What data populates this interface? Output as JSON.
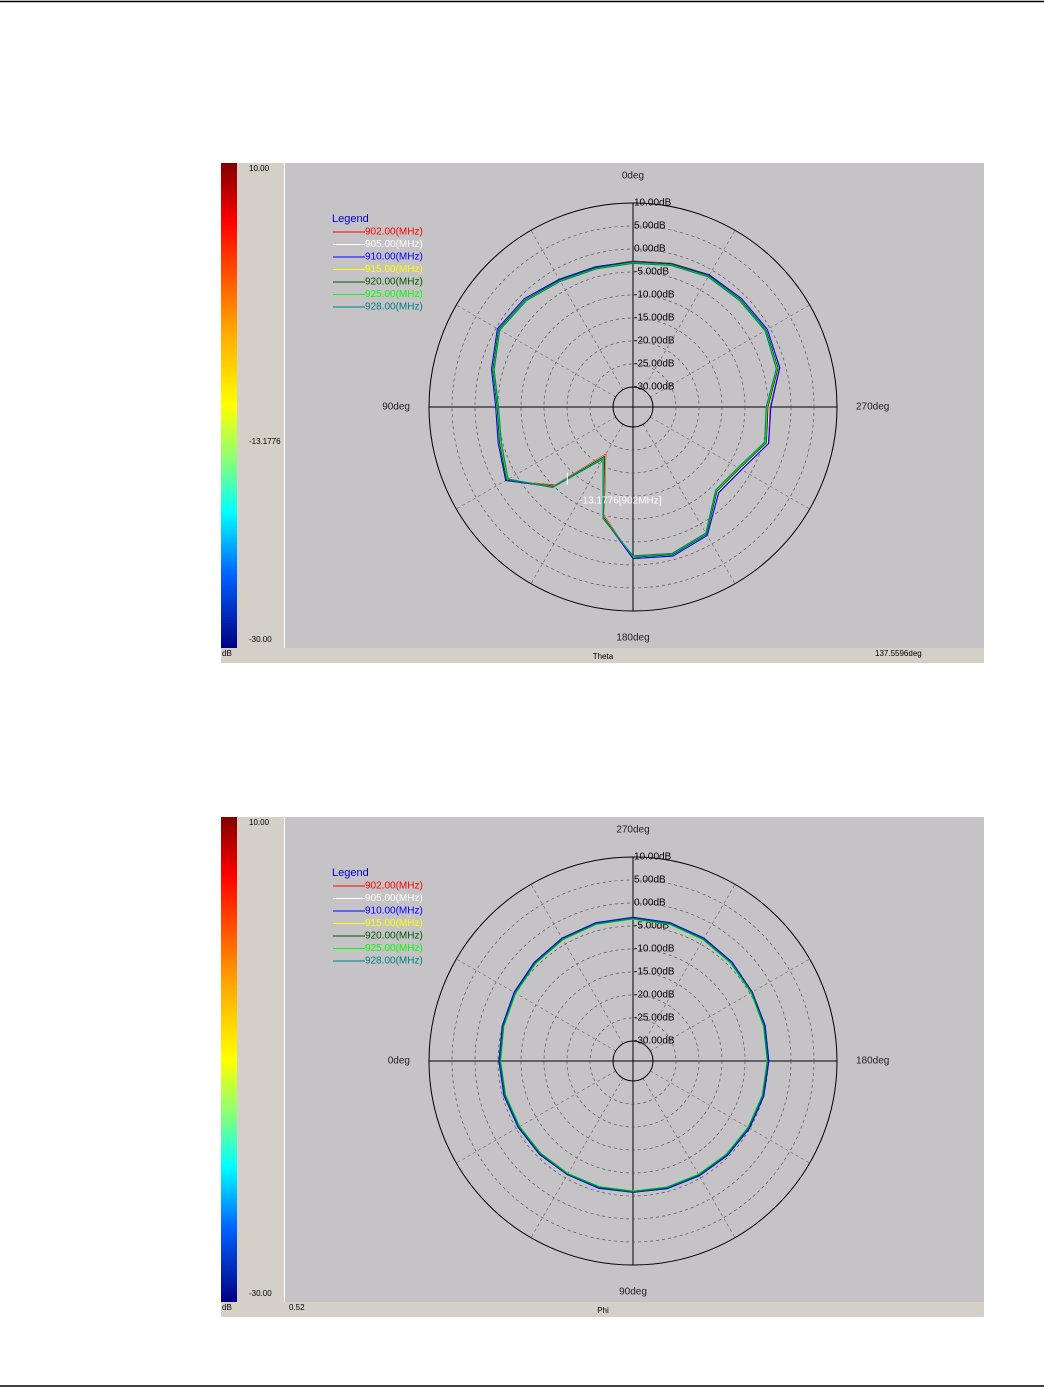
{
  "chart_data": [
    {
      "type": "polar",
      "theta_zero": "N",
      "direction": "counterclockwise",
      "grid": true,
      "angle_axis_label": "Theta",
      "legend_title": "Legend",
      "legend": "upper-left",
      "theta": [
        0,
        15,
        30,
        45,
        60,
        75,
        90,
        105,
        120,
        135,
        150,
        165,
        180,
        195,
        210,
        225,
        240,
        255,
        270,
        285,
        300,
        315,
        330,
        345
      ],
      "theta_grid": [
        0,
        30,
        60,
        90,
        120,
        150,
        180,
        210,
        240,
        270,
        300,
        330
      ],
      "thetaticks": [
        {
          "value": 0,
          "label": "0deg"
        },
        {
          "value": 90,
          "label": "90deg"
        },
        {
          "value": 180,
          "label": "180deg"
        },
        {
          "value": 270,
          "label": "270deg"
        }
      ],
      "rlim": [
        -30,
        10
      ],
      "rticks": [
        {
          "value": 10,
          "label": "10.00dB"
        },
        {
          "value": 5,
          "label": "5.00dB"
        },
        {
          "value": 0,
          "label": "0.00dB"
        },
        {
          "value": -5,
          "label": "-5.00dB"
        },
        {
          "value": -10,
          "label": "-10.00dB"
        },
        {
          "value": -15,
          "label": "-15.00dB"
        },
        {
          "value": -20,
          "label": "-20.00dB"
        },
        {
          "value": -25,
          "label": "-25.00dB"
        },
        {
          "value": -30,
          "label": "-30.00dB"
        }
      ],
      "colorbar": {
        "label": "dB",
        "lim": [
          -30,
          10
        ],
        "ticks": [
          {
            "value": 10,
            "label": "10.00"
          },
          {
            "value": -13.1776,
            "label": "-13.1776"
          },
          {
            "value": -30,
            "label": "-30.00"
          }
        ]
      },
      "cursor": {
        "angle": 137.5596,
        "angle_label": "137.5596deg",
        "value": -13.1776,
        "label": "-13.1776[902MHz]"
      },
      "series": [
        {
          "name": "902.00(MHz)",
          "color": "#ff0000",
          "values": [
            -2.6,
            -2.9,
            -2.4,
            -1.1,
            -0.4,
            -2.6,
            -4.6,
            -4.1,
            -2.5,
            -10.3,
            -22.5,
            -9.9,
            -1.5,
            -0.9,
            -2.2,
            -8.2,
            -7.3,
            -4.0,
            -4.7,
            -1.5,
            -0.7,
            -1.1,
            -1.2,
            -2.0
          ]
        },
        {
          "name": "905.00(MHz)",
          "color": "#ffffff",
          "values": [
            -2.7,
            -3.0,
            -2.5,
            -1.2,
            -0.5,
            -2.7,
            -4.7,
            -4.2,
            -2.6,
            -10.1,
            -22.2,
            -9.7,
            -1.6,
            -1.0,
            -2.3,
            -8.3,
            -7.4,
            -4.1,
            -4.8,
            -1.6,
            -0.8,
            -1.2,
            -1.3,
            -2.1
          ]
        },
        {
          "name": "910.00(MHz)",
          "color": "#0000ff",
          "values": [
            -2.7,
            -2.8,
            -2.3,
            -1.0,
            -0.3,
            -2.5,
            -4.5,
            -4.0,
            -2.4,
            -9.8,
            -21.8,
            -9.4,
            -1.4,
            -0.8,
            -2.1,
            -8.0,
            -7.1,
            -3.8,
            -4.4,
            -1.3,
            -0.6,
            -1.0,
            -1.2,
            -2.1
          ]
        },
        {
          "name": "915.00(MHz)",
          "color": "#ffff00",
          "values": [
            -2.9,
            -3.1,
            -2.6,
            -1.4,
            -0.7,
            -2.9,
            -4.9,
            -4.4,
            -2.7,
            -10.0,
            -21.9,
            -9.6,
            -1.8,
            -1.2,
            -2.5,
            -8.6,
            -7.7,
            -4.4,
            -5.1,
            -1.8,
            -1.0,
            -1.4,
            -1.5,
            -2.3
          ]
        },
        {
          "name": "920.00(MHz)",
          "color": "#005a00",
          "values": [
            -2.8,
            -3.0,
            -2.5,
            -1.3,
            -0.6,
            -2.8,
            -4.8,
            -4.3,
            -2.6,
            -10.0,
            -22.0,
            -9.6,
            -1.7,
            -1.1,
            -2.4,
            -8.5,
            -7.6,
            -4.3,
            -5.0,
            -1.7,
            -0.9,
            -1.3,
            -1.4,
            -2.2
          ]
        },
        {
          "name": "925.00(MHz)",
          "color": "#00ff00",
          "values": [
            -3.0,
            -3.2,
            -2.7,
            -1.5,
            -0.8,
            -3.0,
            -5.0,
            -4.6,
            -2.9,
            -9.7,
            -21.5,
            -9.3,
            -1.9,
            -1.3,
            -2.6,
            -8.8,
            -7.9,
            -4.6,
            -5.3,
            -2.0,
            -1.1,
            -1.5,
            -1.6,
            -2.4
          ]
        },
        {
          "name": "928.00(MHz)",
          "color": "#008080",
          "values": [
            -3.1,
            -3.3,
            -2.8,
            -1.6,
            -0.9,
            -3.1,
            -5.1,
            -4.7,
            -3.0,
            -9.6,
            -21.3,
            -9.2,
            -2.0,
            -1.4,
            -2.7,
            -8.9,
            -8.0,
            -4.7,
            -5.4,
            -2.1,
            -1.2,
            -1.6,
            -1.7,
            -2.5
          ]
        }
      ]
    },
    {
      "type": "polar",
      "theta_zero": "W",
      "direction": "counterclockwise",
      "grid": true,
      "angle_axis_label": "Phi",
      "footer_left": "0.52",
      "legend_title": "Legend",
      "legend": "upper-left",
      "theta": [
        0,
        15,
        30,
        45,
        60,
        75,
        90,
        105,
        120,
        135,
        150,
        165,
        180,
        195,
        210,
        225,
        240,
        255,
        270,
        285,
        300,
        315,
        330,
        345
      ],
      "theta_grid": [
        0,
        30,
        60,
        90,
        120,
        150,
        180,
        210,
        240,
        270,
        300,
        330
      ],
      "thetaticks": [
        {
          "value": 0,
          "label": "0deg"
        },
        {
          "value": 90,
          "label": "90deg"
        },
        {
          "value": 180,
          "label": "180deg"
        },
        {
          "value": 270,
          "label": "270deg"
        }
      ],
      "rlim": [
        -30,
        10
      ],
      "rticks": [
        {
          "value": 10,
          "label": "10.00dB"
        },
        {
          "value": 5,
          "label": "5.00dB"
        },
        {
          "value": 0,
          "label": "0.00dB"
        },
        {
          "value": -5,
          "label": "-5.00dB"
        },
        {
          "value": -10,
          "label": "-10.00dB"
        },
        {
          "value": -15,
          "label": "-15.00dB"
        },
        {
          "value": -20,
          "label": "-20.00dB"
        },
        {
          "value": -25,
          "label": "-25.00dB"
        },
        {
          "value": -30,
          "label": "-30.00dB"
        }
      ],
      "colorbar": {
        "label": "dB",
        "lim": [
          -30,
          10
        ],
        "ticks": [
          {
            "value": 10,
            "label": "10.00"
          },
          {
            "value": -30,
            "label": "-30.00"
          }
        ]
      },
      "series": [
        {
          "name": "902.00(MHz)",
          "color": "#ff0000",
          "values": [
            -5.3,
            -5.4,
            -5.6,
            -5.7,
            -5.8,
            -5.8,
            -5.8,
            -5.7,
            -5.6,
            -5.4,
            -5.2,
            -5.0,
            -4.9,
            -4.7,
            -4.4,
            -4.0,
            -3.6,
            -3.3,
            -3.2,
            -3.3,
            -3.6,
            -4.1,
            -4.6,
            -5.0
          ]
        },
        {
          "name": "905.00(MHz)",
          "color": "#ffffff",
          "values": [
            -5.4,
            -5.5,
            -5.7,
            -5.8,
            -5.9,
            -5.9,
            -5.9,
            -5.8,
            -5.7,
            -5.5,
            -5.3,
            -5.1,
            -5.0,
            -4.8,
            -4.5,
            -4.1,
            -3.7,
            -3.4,
            -3.3,
            -3.4,
            -3.7,
            -4.2,
            -4.7,
            -5.1
          ]
        },
        {
          "name": "910.00(MHz)",
          "color": "#0000ff",
          "values": [
            -5.2,
            -5.3,
            -5.5,
            -5.6,
            -5.8,
            -5.7,
            -5.8,
            -5.6,
            -5.5,
            -5.3,
            -5.1,
            -4.9,
            -4.8,
            -4.6,
            -4.4,
            -3.9,
            -3.5,
            -3.2,
            -3.1,
            -3.2,
            -3.5,
            -4.0,
            -4.5,
            -4.9
          ]
        },
        {
          "name": "915.00(MHz)",
          "color": "#ffff00",
          "values": [
            -5.5,
            -5.6,
            -5.8,
            -5.9,
            -6.0,
            -6.0,
            -6.0,
            -5.9,
            -5.8,
            -5.6,
            -5.4,
            -5.2,
            -5.1,
            -4.9,
            -4.6,
            -4.2,
            -3.8,
            -3.5,
            -3.4,
            -3.5,
            -3.8,
            -4.3,
            -4.8,
            -5.2
          ]
        },
        {
          "name": "920.00(MHz)",
          "color": "#005a00",
          "values": [
            -5.4,
            -5.5,
            -5.7,
            -5.8,
            -5.9,
            -5.9,
            -5.9,
            -5.8,
            -5.7,
            -5.5,
            -5.3,
            -5.1,
            -5.0,
            -4.8,
            -4.5,
            -4.1,
            -3.7,
            -3.4,
            -3.3,
            -3.4,
            -3.7,
            -4.2,
            -4.7,
            -5.1
          ]
        },
        {
          "name": "925.00(MHz)",
          "color": "#00ff00",
          "values": [
            -5.6,
            -5.7,
            -5.9,
            -6.0,
            -6.1,
            -6.1,
            -6.1,
            -6.0,
            -5.9,
            -5.7,
            -5.5,
            -5.3,
            -5.2,
            -5.0,
            -4.7,
            -4.3,
            -3.9,
            -3.6,
            -3.5,
            -3.6,
            -3.9,
            -4.4,
            -4.9,
            -5.3
          ]
        },
        {
          "name": "928.00(MHz)",
          "color": "#008080",
          "values": [
            -5.5,
            -5.6,
            -5.8,
            -5.9,
            -6.0,
            -6.0,
            -6.0,
            -5.9,
            -5.8,
            -5.6,
            -5.4,
            -5.2,
            -5.1,
            -4.9,
            -4.6,
            -4.2,
            -3.8,
            -3.5,
            -3.4,
            -3.5,
            -3.8,
            -4.3,
            -4.8,
            -5.2
          ]
        }
      ]
    }
  ]
}
